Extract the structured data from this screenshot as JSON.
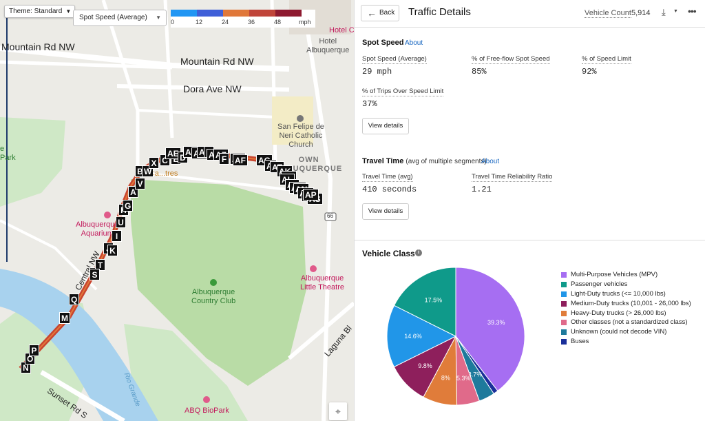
{
  "map": {
    "theme_label": "Theme: Standard",
    "metric_select": "Spot Speed (Average)",
    "legend": {
      "colors": [
        "#2196f3",
        "#3f5fd8",
        "#e0783a",
        "#c0453a",
        "#8e1a30"
      ],
      "ticks": [
        "0",
        "12",
        "24",
        "36",
        "48",
        "mph"
      ]
    },
    "road_labels": [
      "Mountain Rd NW",
      "Mountain Rd NW",
      "Dora Ave NW",
      "Central NW",
      "Laguna Bl",
      "Sunset Rd S"
    ],
    "poi_labels": {
      "hotel": "Hotel\nAlbuquerque",
      "hotel_chac": "Hotel Chac",
      "church": "San Felipe de\nNeri Catholic\nChurch",
      "old_town": "OWN\nALBUQUERQUE",
      "los_poblanos": "Los Ca...tres",
      "aquarium": "Albuquerque\nAquarium",
      "country_club": "Albuquerque\nCountry Club",
      "little_theatre": "Albuquerque\nLittle Theatre",
      "biopark": "ABQ BioPark",
      "park": "e\nPark",
      "rio_grande": "Rio Grande",
      "route_shield": "66"
    },
    "markers": [
      "N",
      "O",
      "P",
      "M",
      "Q",
      "R",
      "T",
      "S",
      "J",
      "K",
      "I",
      "U",
      "H",
      "G",
      "A",
      "V",
      "B",
      "W",
      "X",
      "C",
      "E",
      "AE",
      "D",
      "AB",
      "AC",
      "AD",
      "Y",
      "AA",
      "AZ",
      "F",
      "AH",
      "AF",
      "AG",
      "AI",
      "AT",
      "AK",
      "AR",
      "AL",
      "AJ",
      "AM",
      "AN",
      "AO",
      "AQ",
      "AS",
      "AP"
    ]
  },
  "panel": {
    "back_label": "Back",
    "title": "Traffic Details",
    "vehicle_count_label": "Vehicle Count",
    "vehicle_count_value": "5,914",
    "spot_speed": {
      "title": "Spot Speed",
      "about": "About",
      "metrics": [
        {
          "label": "Spot Speed (Average)",
          "value": "29 mph"
        },
        {
          "label": "% of Free-flow Spot Speed",
          "value": "85%"
        },
        {
          "label": "% of Speed Limit",
          "value": "92%"
        },
        {
          "label": "% of Trips Over Speed Limit",
          "value": "37%"
        }
      ],
      "view_details": "View details"
    },
    "travel_time": {
      "title": "Travel Time",
      "subtitle": "(avg of multiple segments)",
      "about": "About",
      "metrics": [
        {
          "label": "Travel Time (avg)",
          "value": "410 seconds"
        },
        {
          "label": "Travel Time Reliability Ratio",
          "value": "1.21"
        }
      ],
      "view_details": "View details"
    },
    "vehicle_class": {
      "title": "Vehicle Class"
    }
  },
  "chart_data": {
    "type": "pie",
    "title": "",
    "slices": [
      {
        "label": "Multi-Purpose Vehicles (MPV)",
        "value": 39.3,
        "color": "#a66ef2",
        "display": "39.3%"
      },
      {
        "label": "Buses",
        "value": 1.1,
        "color": "#1a2f9a",
        "display": ""
      },
      {
        "label": "Unknown (could not decode VIN)",
        "value": 3.7,
        "color": "#1e7a9c",
        "display": "3.7%"
      },
      {
        "label": "Other classes (not a standardized class)",
        "value": 5.3,
        "color": "#e06a8a",
        "display": "5.3%"
      },
      {
        "label": "Heavy-Duty trucks (> 26,000 lbs)",
        "value": 8,
        "color": "#e07c3a",
        "display": "8%"
      },
      {
        "label": "Medium-Duty trucks (10,001 - 26,000 lbs)",
        "value": 9.8,
        "color": "#8e1f5c",
        "display": "9.8%"
      },
      {
        "label": "Light-Duty trucks (<= 10,000 lbs)",
        "value": 14.6,
        "color": "#2196e8",
        "display": "14.6%"
      },
      {
        "label": "Passenger vehicles",
        "value": 17.5,
        "color": "#0f9a8a",
        "display": "17.5%"
      }
    ],
    "legend": [
      {
        "label": "Multi-Purpose Vehicles (MPV)",
        "color": "#a66ef2"
      },
      {
        "label": "Passenger vehicles",
        "color": "#0f9a8a"
      },
      {
        "label": "Light-Duty trucks (<= 10,000 lbs)",
        "color": "#2196e8"
      },
      {
        "label": "Medium-Duty trucks (10,001 - 26,000 lbs)",
        "color": "#8e1f5c"
      },
      {
        "label": "Heavy-Duty trucks (> 26,000 lbs)",
        "color": "#e07c3a"
      },
      {
        "label": "Other classes (not a standardized class)",
        "color": "#e06a8a"
      },
      {
        "label": "Unknown (could not decode VIN)",
        "color": "#1e7a9c"
      },
      {
        "label": "Buses",
        "color": "#1a2f9a"
      }
    ]
  }
}
